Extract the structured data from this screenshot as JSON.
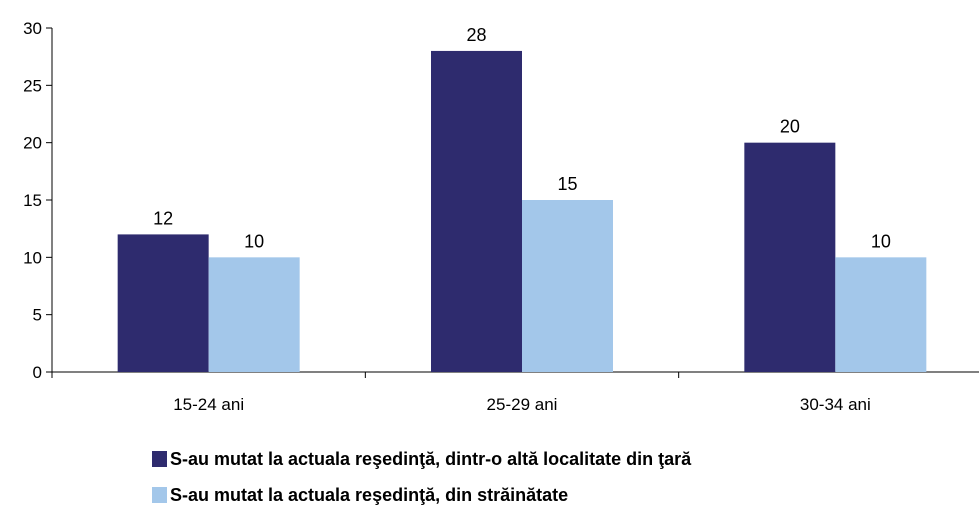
{
  "chart_data": {
    "type": "bar",
    "categories": [
      "15-24 ani",
      "25-29 ani",
      "30-34 ani"
    ],
    "series": [
      {
        "name": "S-au mutat la actuala reşedinţă, dintr-o altă localitate din ţară",
        "values": [
          12,
          28,
          20
        ],
        "color": "#2e2b6e"
      },
      {
        "name": "S-au mutat la actuala reşedinţă, din străinătate",
        "values": [
          10,
          15,
          10
        ],
        "color": "#a3c7ea"
      }
    ],
    "y_ticks": [
      "0",
      "5",
      "10",
      "15",
      "20",
      "25",
      "30"
    ],
    "ylim": [
      0,
      30
    ],
    "data_labels": [
      [
        "12",
        "28",
        "20"
      ],
      [
        "10",
        "15",
        "10"
      ]
    ],
    "grid": false,
    "legend_position": "bottom"
  }
}
